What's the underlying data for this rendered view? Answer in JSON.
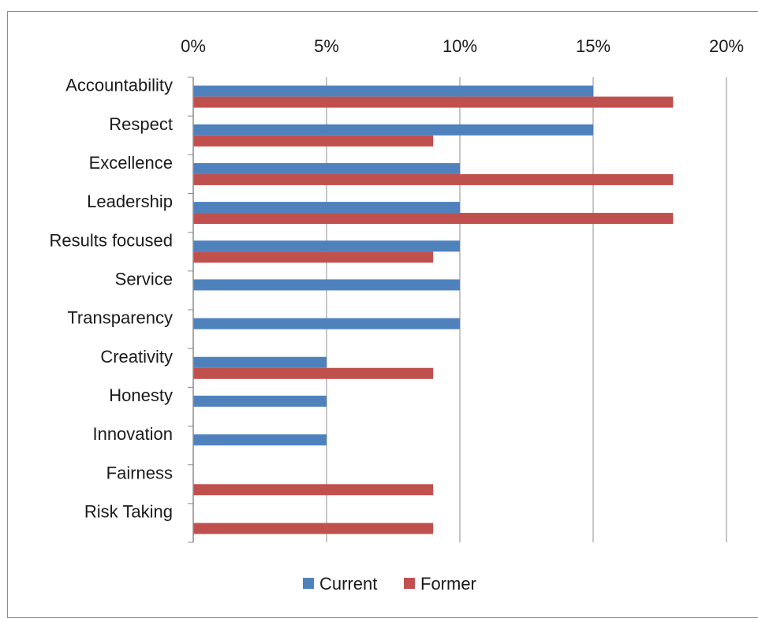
{
  "chart_data": {
    "type": "bar",
    "orientation": "horizontal",
    "categories": [
      "Accountability",
      "Respect",
      "Excellence",
      "Leadership",
      "Results focused",
      "Service",
      "Transparency",
      "Creativity",
      "Honesty",
      "Innovation",
      "Fairness",
      "Risk Taking"
    ],
    "series": [
      {
        "name": "Current",
        "color": "#4f81bd",
        "values": [
          15,
          15,
          10,
          10,
          10,
          10,
          10,
          5,
          5,
          5,
          0,
          0
        ]
      },
      {
        "name": "Former",
        "color": "#c0504d",
        "values": [
          18,
          9,
          18,
          18,
          9,
          0,
          0,
          9,
          0,
          0,
          9,
          9
        ]
      }
    ],
    "xlim": [
      0,
      20
    ],
    "x_ticks": [
      0,
      5,
      10,
      15,
      20
    ],
    "x_tick_labels": [
      "0%",
      "5%",
      "10%",
      "15%",
      "20%"
    ],
    "x_axis_position": "top",
    "grid": "vertical",
    "legend_position": "bottom",
    "title": "",
    "xlabel": "",
    "ylabel": ""
  }
}
